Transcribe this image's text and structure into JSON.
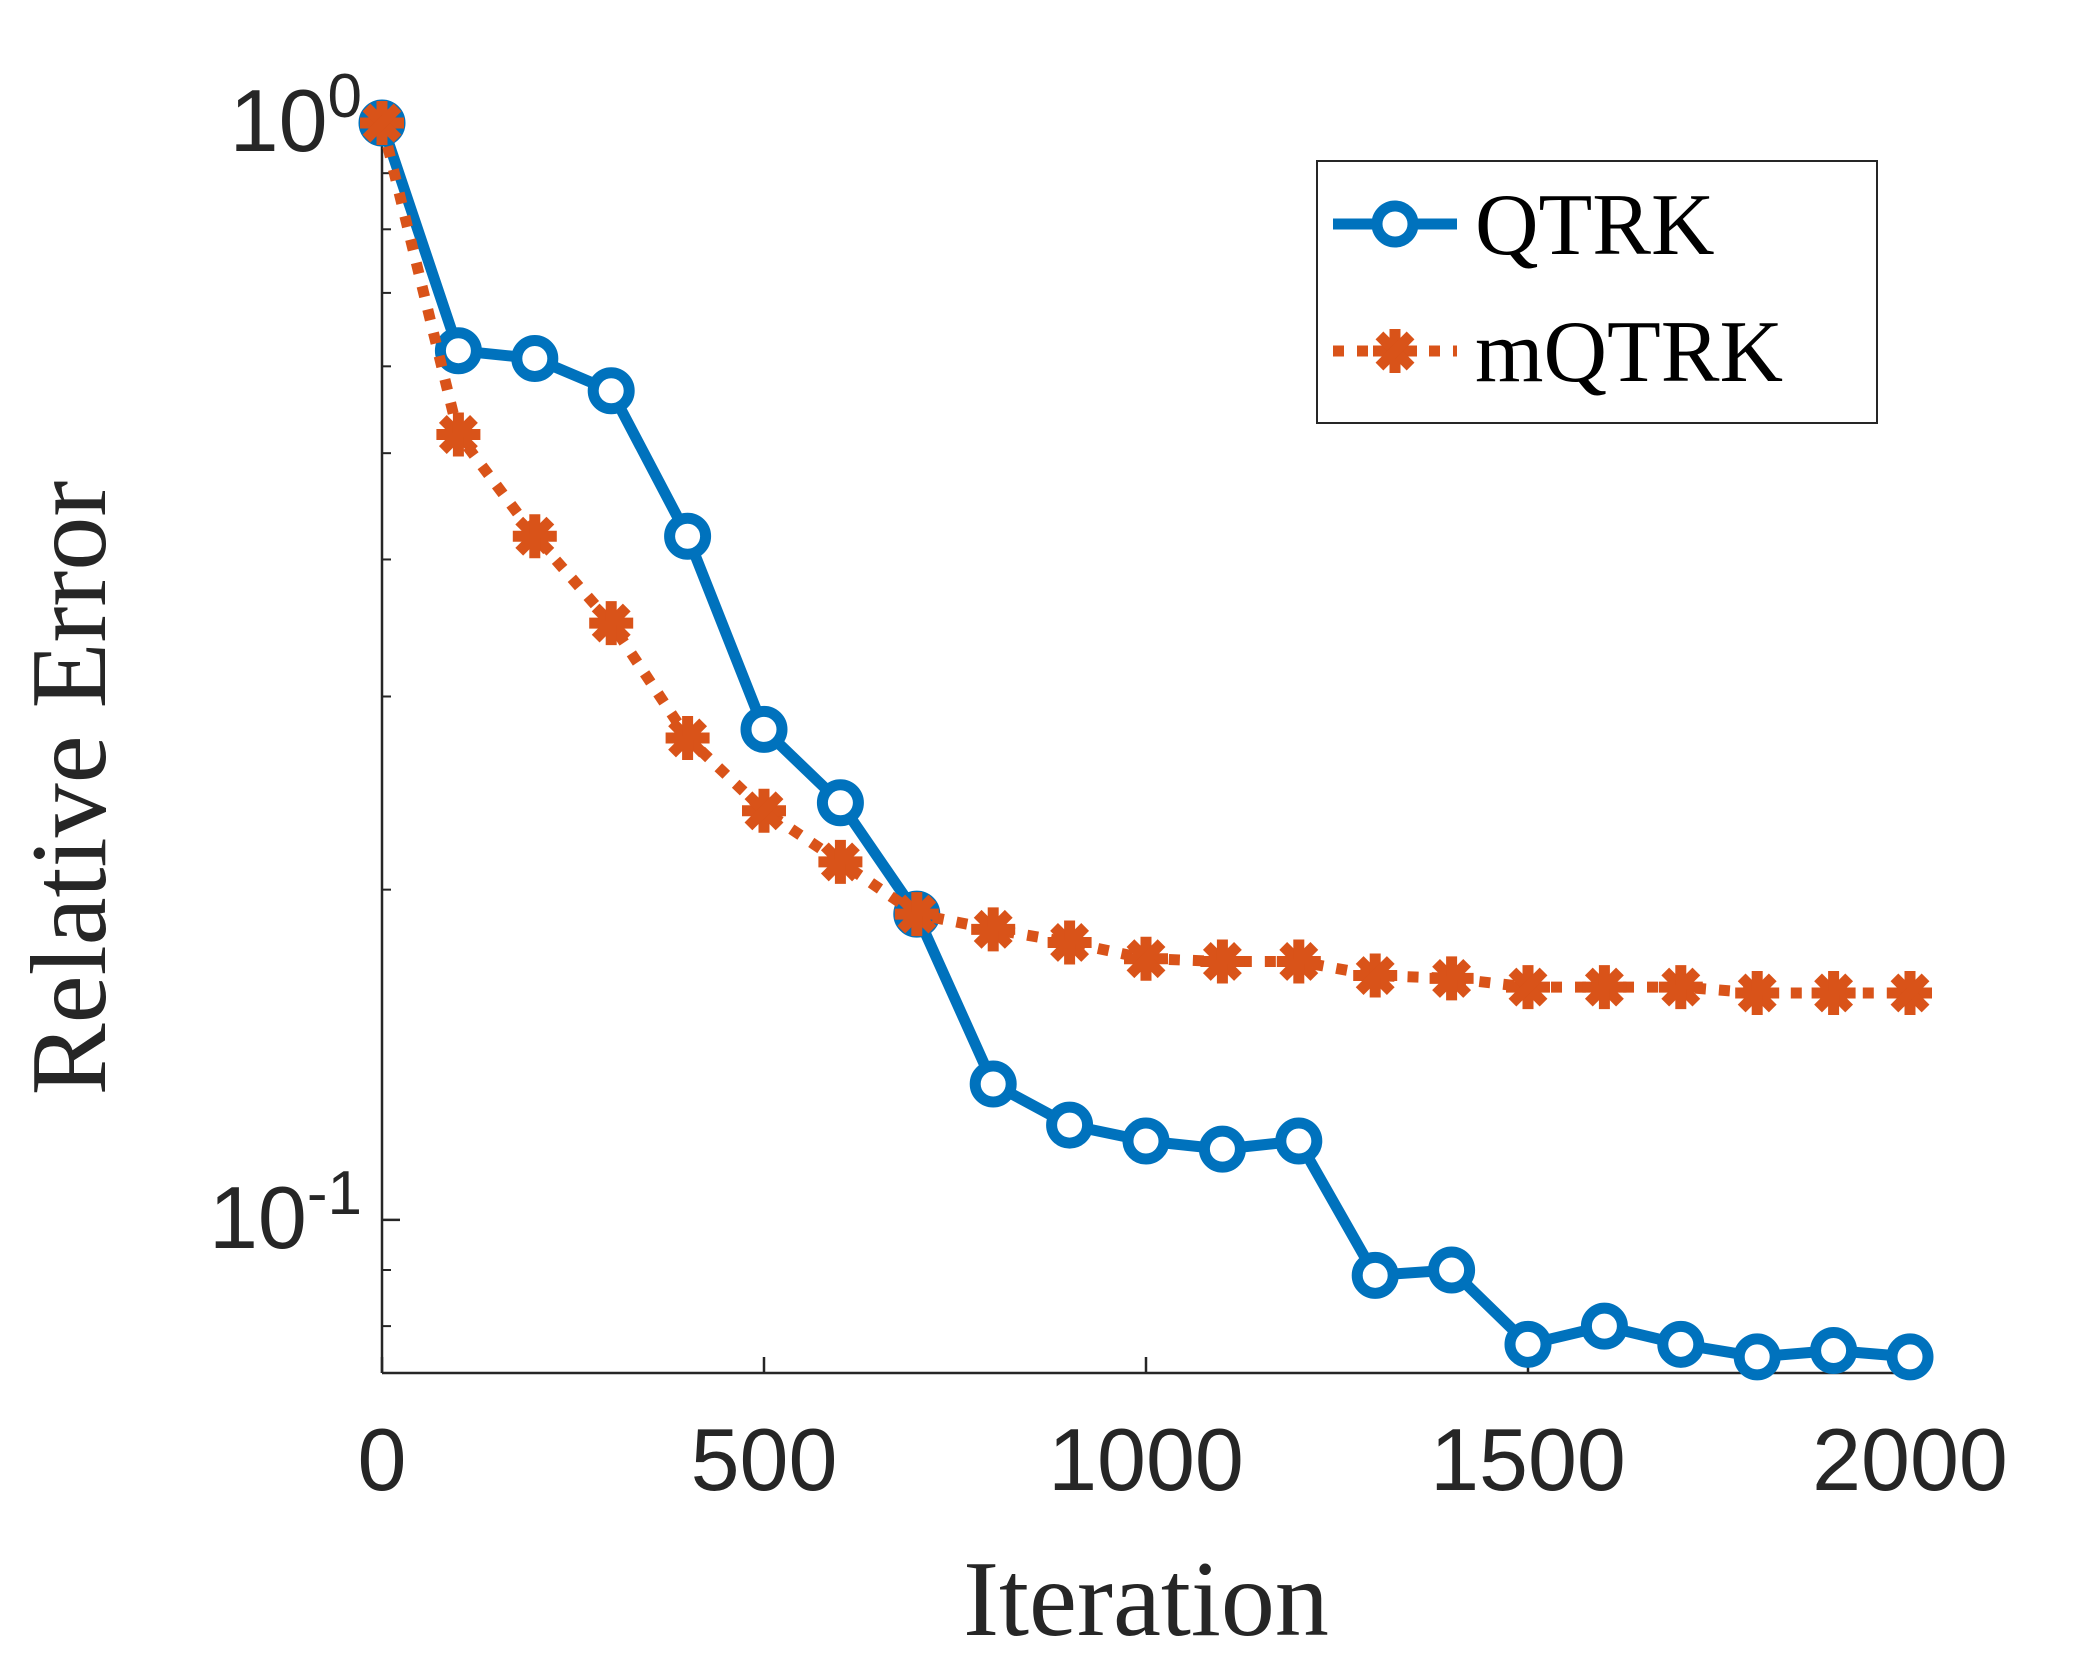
{
  "chart_data": {
    "type": "line",
    "xlabel": "Iteration",
    "ylabel": "Relative Error",
    "xlim": [
      0,
      2000
    ],
    "ylim": [
      0.0725,
      1.0
    ],
    "yscale": "log",
    "xticks": [
      0,
      500,
      1000,
      1500,
      2000
    ],
    "xtick_labels": [
      "0",
      "500",
      "1000",
      "1500",
      "2000"
    ],
    "yticks": [
      {
        "value": 1.0,
        "base": "10",
        "exp": "0"
      },
      {
        "value": 0.1,
        "base": "10",
        "exp": "-1"
      }
    ],
    "grid": false,
    "legend_position": "top-right",
    "x": [
      0,
      100,
      200,
      300,
      400,
      500,
      600,
      700,
      800,
      900,
      1000,
      1100,
      1200,
      1300,
      1400,
      1500,
      1600,
      1700,
      1800,
      1900,
      2000
    ],
    "series": [
      {
        "name": "QTRK",
        "color": "#0072BD",
        "marker": "circle",
        "line_style": "solid",
        "values": [
          1.0,
          0.62,
          0.61,
          0.57,
          0.42,
          0.28,
          0.24,
          0.19,
          0.133,
          0.122,
          0.118,
          0.116,
          0.118,
          0.089,
          0.09,
          0.077,
          0.08,
          0.077,
          0.075,
          0.076,
          0.075
        ]
      },
      {
        "name": "mQTRK",
        "color": "#D95319",
        "marker": "asterisk",
        "line_style": "dotted",
        "values": [
          1.0,
          0.52,
          0.42,
          0.35,
          0.275,
          0.236,
          0.212,
          0.19,
          0.184,
          0.179,
          0.173,
          0.172,
          0.172,
          0.167,
          0.166,
          0.163,
          0.163,
          0.163,
          0.161,
          0.161,
          0.161
        ]
      }
    ]
  }
}
